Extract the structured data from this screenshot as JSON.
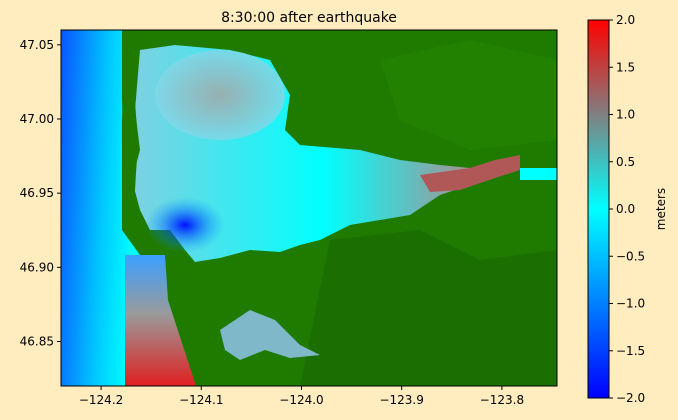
{
  "chart_data": {
    "type": "heatmap",
    "title": "8:30:00 after earthquake",
    "x_ticks": [
      -124.2,
      -124.1,
      -124.0,
      -123.9,
      -123.8
    ],
    "x_tick_labels": [
      "−124.2",
      "−124.1",
      "−124.0",
      "−123.9",
      "−123.8"
    ],
    "y_ticks": [
      46.85,
      46.9,
      46.95,
      47.0,
      47.05
    ],
    "y_tick_labels": [
      "46.85",
      "46.90",
      "46.95",
      "47.00",
      "47.05"
    ],
    "xlim": [
      -124.24,
      -123.745
    ],
    "ylim": [
      46.82,
      47.06
    ],
    "colorbar": {
      "label": "meters",
      "range": [
        -2.0,
        2.0
      ],
      "ticks": [
        -2.0,
        -1.5,
        -1.0,
        -0.5,
        0.0,
        0.5,
        1.0,
        1.5,
        2.0
      ],
      "tick_labels": [
        "−2.0",
        "−1.5",
        "−1.0",
        "−0.5",
        "0.0",
        "0.5",
        "1.0",
        "1.5",
        "2.0"
      ],
      "colors": [
        "#0000ff",
        "#00ffff",
        "#808080",
        "#ff0000"
      ]
    },
    "land_color": "#1f7a00",
    "grid": false
  }
}
